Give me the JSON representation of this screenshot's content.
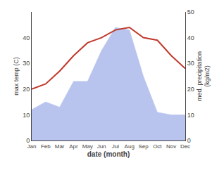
{
  "chart_data": {
    "type": "line",
    "xlabel": "date (month)",
    "ylabel": "max temp (C)",
    "y2label": "med. precipitation\n(kg/m2)",
    "x": [
      1,
      2,
      3,
      4,
      5,
      6,
      7,
      8,
      9,
      10,
      11,
      12
    ],
    "xlim": [
      1,
      12
    ],
    "xticks": [
      {
        "value": 1,
        "label": "Jan"
      },
      {
        "value": 2,
        "label": "Feb"
      },
      {
        "value": 3,
        "label": "Mar"
      },
      {
        "value": 4,
        "label": "Apr"
      },
      {
        "value": 5,
        "label": "May"
      },
      {
        "value": 6,
        "label": "Jun"
      },
      {
        "value": 7,
        "label": "Jul"
      },
      {
        "value": 8,
        "label": "Aug"
      },
      {
        "value": 9,
        "label": "Sep"
      },
      {
        "value": 10,
        "label": "Oct"
      },
      {
        "value": 11,
        "label": "Nov"
      },
      {
        "value": 12,
        "label": "Dec"
      }
    ],
    "ylim": [
      0,
      50
    ],
    "yticks": [
      0,
      10,
      20,
      30,
      40
    ],
    "y2lim": [
      0,
      50
    ],
    "y2ticks": [
      0,
      10,
      20,
      30,
      40,
      50
    ],
    "grid": false,
    "series": [
      {
        "type": "area",
        "axis": "y2",
        "color": "#b8c4ee",
        "values": [
          12,
          15,
          13,
          23,
          23,
          35,
          44,
          43,
          25,
          11,
          10,
          10
        ]
      },
      {
        "type": "line",
        "color": "#c0392b",
        "values": [
          20,
          22,
          27,
          33,
          38,
          40,
          43,
          44,
          40,
          39,
          33,
          28
        ]
      }
    ]
  }
}
